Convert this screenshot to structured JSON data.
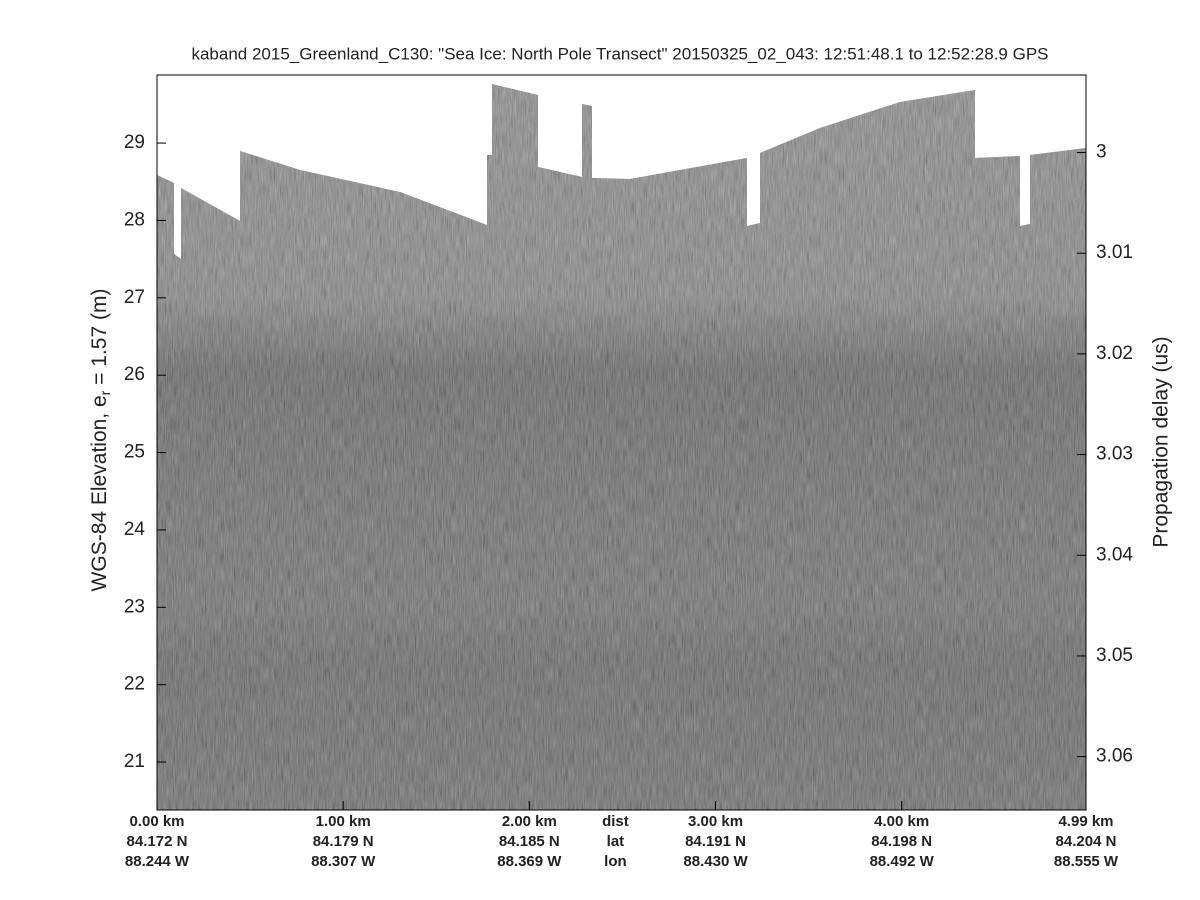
{
  "chart_data": {
    "type": "echogram",
    "title": "kaband 2015_Greenland_C130: \"Sea Ice: North Pole Transect\"  20150325_02_043: 12:51:48.1 to 12:52:28.9 GPS",
    "ylabel_parts": [
      "WGS-84 Elevation, e",
      "r",
      " = 1.57 (m)"
    ],
    "y2label": "Propagation delay (us)",
    "ylim": [
      20.38,
      29.88
    ],
    "yticks": [
      21,
      22,
      23,
      24,
      25,
      26,
      27,
      28,
      29
    ],
    "y2lim": [
      3.0653,
      2.9923
    ],
    "y2ticks": [
      3,
      3.01,
      3.02,
      3.03,
      3.04,
      3.05,
      3.06
    ],
    "xlim": [
      0,
      4.99
    ],
    "xticks": [
      {
        "value": 0,
        "label": "0.00 km"
      },
      {
        "value": 1,
        "label": "1.00 km"
      },
      {
        "value": 2,
        "label": "2.00 km"
      },
      {
        "value": 3,
        "label": "3.00 km"
      },
      {
        "value": 4,
        "label": "4.00 km"
      },
      {
        "value": 4.99,
        "label": "4.99 km"
      }
    ],
    "lat_labels": [
      "84.172 N",
      "84.179 N",
      "84.185 N",
      "84.191 N",
      "84.198 N",
      "84.204 N"
    ],
    "lon_labels": [
      "88.244 W",
      "88.307 W",
      "88.369 W",
      "88.430 W",
      "88.492 W",
      "88.555 W"
    ],
    "row_names": [
      "dist",
      "lat",
      "lon"
    ],
    "grid": false
  }
}
